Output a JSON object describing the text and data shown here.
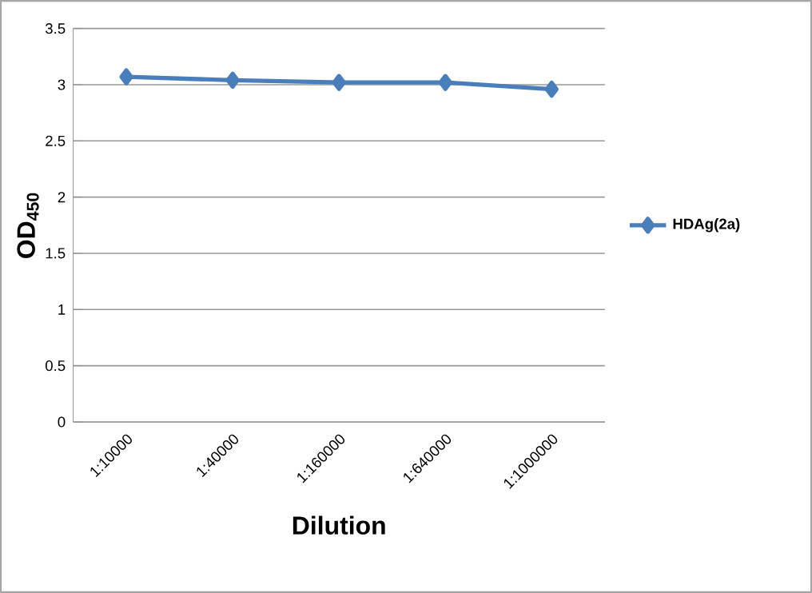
{
  "chart_data": {
    "type": "line",
    "xlabel": "Dilution",
    "ylabel": "OD$_{450}$",
    "categories": [
      "1:10000",
      "1:40000",
      "1:160000",
      "1:640000",
      "1:1000000"
    ],
    "series": [
      {
        "name": "HDAg(2a)",
        "color": "#4a7ebb",
        "values": [
          3.07,
          3.04,
          3.02,
          3.02,
          2.96
        ]
      }
    ],
    "ylim": [
      0,
      3.5
    ],
    "yticks": [
      0,
      0.5,
      1,
      1.5,
      2,
      2.5,
      3,
      3.5
    ],
    "grid": "y",
    "legend": "right",
    "marker": "diamond",
    "line_style": "solid"
  }
}
